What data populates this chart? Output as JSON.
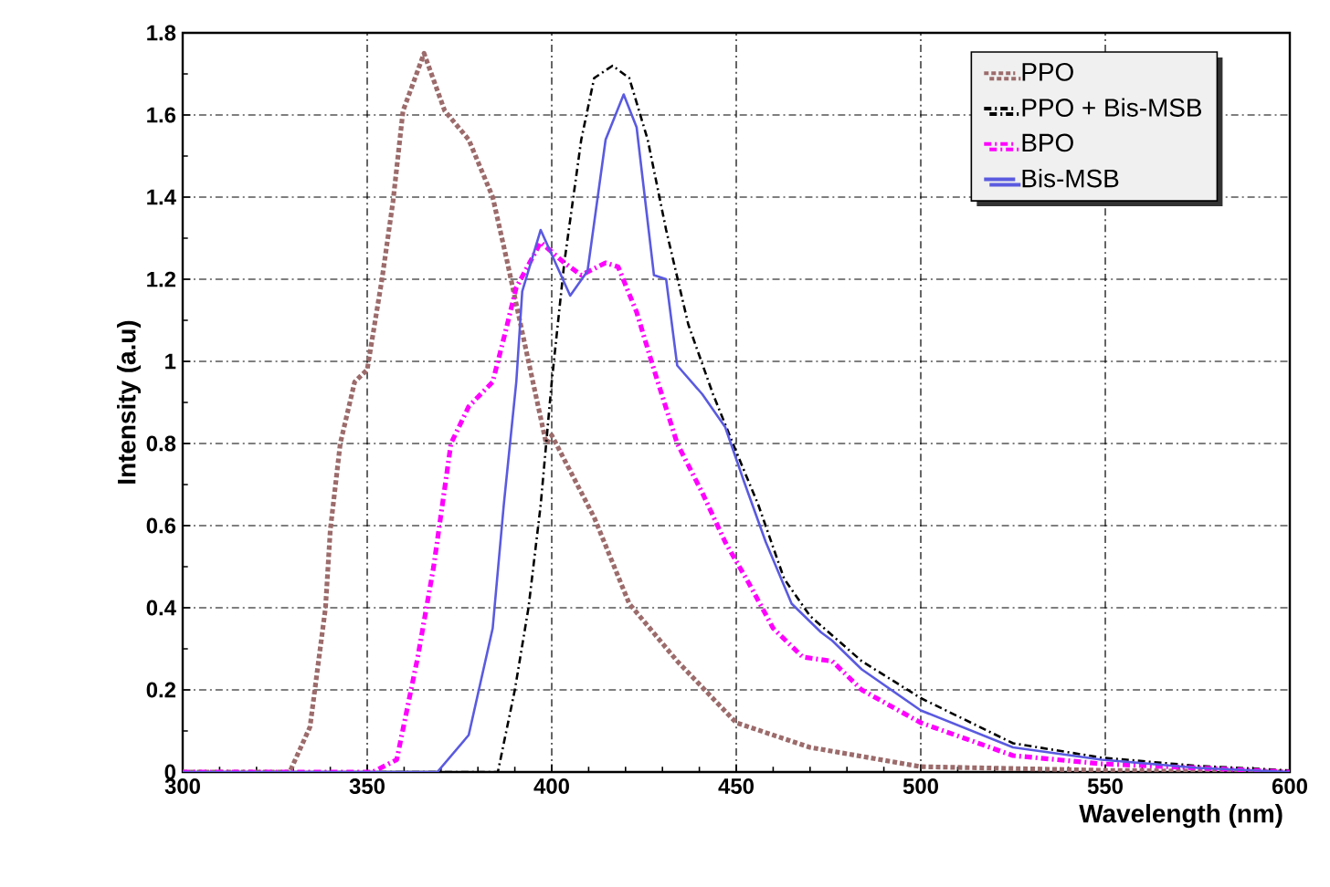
{
  "chart_data": {
    "type": "line",
    "xlabel": "Wavelength (nm)",
    "ylabel": "Intensity (a.u)",
    "xlim": [
      300,
      600
    ],
    "ylim": [
      0,
      1.8
    ],
    "xticks": [
      300,
      350,
      400,
      450,
      500,
      550,
      600
    ],
    "yticks": [
      0,
      0.2,
      0.4,
      0.6,
      0.8,
      1,
      1.2,
      1.4,
      1.6,
      1.8
    ],
    "grid": true,
    "legend": "top right",
    "marker": "none",
    "series": [
      {
        "name": "PPO",
        "color": "#9c6b6b",
        "line_style": "dotted",
        "x": [
          300,
          329,
          334.5,
          338.7,
          340,
          342.7,
          346.6,
          350,
          354,
          357,
          359.7,
          365.4,
          371,
          377.5,
          384,
          388,
          393.7,
          398.5,
          400,
          411.5,
          421,
          434,
          450,
          470,
          500,
          550,
          600
        ],
        "values": [
          0,
          0,
          0.11,
          0.4,
          0.59,
          0.8,
          0.95,
          0.98,
          1.2,
          1.39,
          1.61,
          1.75,
          1.61,
          1.54,
          1.4,
          1.24,
          1.0,
          0.8,
          0.82,
          0.62,
          0.41,
          0.27,
          0.12,
          0.06,
          0.013,
          0.004,
          0
        ]
      },
      {
        "name": "PPO + Bis-MSB",
        "color": "#000000",
        "line_style": "dashed",
        "x": [
          300,
          385.4,
          390,
          393.7,
          397,
          400,
          403.4,
          408,
          411.5,
          416.5,
          421,
          426,
          431,
          437,
          443.7,
          450,
          456,
          463,
          470,
          484,
          500,
          525,
          549,
          575,
          597.6,
          600
        ],
        "values": [
          0,
          0,
          0.2,
          0.4,
          0.65,
          0.95,
          1.24,
          1.54,
          1.69,
          1.72,
          1.69,
          1.54,
          1.32,
          1.09,
          0.92,
          0.78,
          0.65,
          0.47,
          0.38,
          0.27,
          0.18,
          0.07,
          0.035,
          0.015,
          0.005,
          0.004
        ]
      },
      {
        "name": "BPO",
        "color": "#ff00ff",
        "line_style": "dashed",
        "x": [
          300,
          351.5,
          358,
          363.7,
          368,
          372.7,
          377.5,
          384,
          387.4,
          390.4,
          397,
          403.4,
          408,
          414.6,
          418,
          423,
          427.7,
          434,
          440.8,
          447,
          453.4,
          460,
          468,
          476,
          484,
          500,
          525,
          549,
          575,
          600
        ],
        "values": [
          0,
          0,
          0.03,
          0.28,
          0.5,
          0.8,
          0.89,
          0.95,
          1.07,
          1.18,
          1.29,
          1.24,
          1.21,
          1.24,
          1.23,
          1.12,
          0.98,
          0.8,
          0.68,
          0.56,
          0.46,
          0.35,
          0.28,
          0.27,
          0.2,
          0.12,
          0.04,
          0.02,
          0.01,
          0
        ]
      },
      {
        "name": "Bis-MSB",
        "color": "#5a5ae0",
        "line_style": "solid",
        "x": [
          300,
          369,
          377.5,
          384,
          387,
          390.4,
          392,
          397,
          405,
          409.7,
          414.6,
          419.5,
          423,
          427.7,
          431,
          434,
          440.8,
          447,
          452,
          458,
          465,
          473,
          476,
          484,
          500,
          525,
          549,
          575,
          600
        ],
        "values": [
          0,
          0,
          0.09,
          0.35,
          0.65,
          0.95,
          1.17,
          1.32,
          1.16,
          1.22,
          1.54,
          1.65,
          1.57,
          1.21,
          1.2,
          0.99,
          0.92,
          0.84,
          0.71,
          0.56,
          0.41,
          0.34,
          0.32,
          0.25,
          0.15,
          0.06,
          0.03,
          0.01,
          0
        ]
      }
    ]
  }
}
